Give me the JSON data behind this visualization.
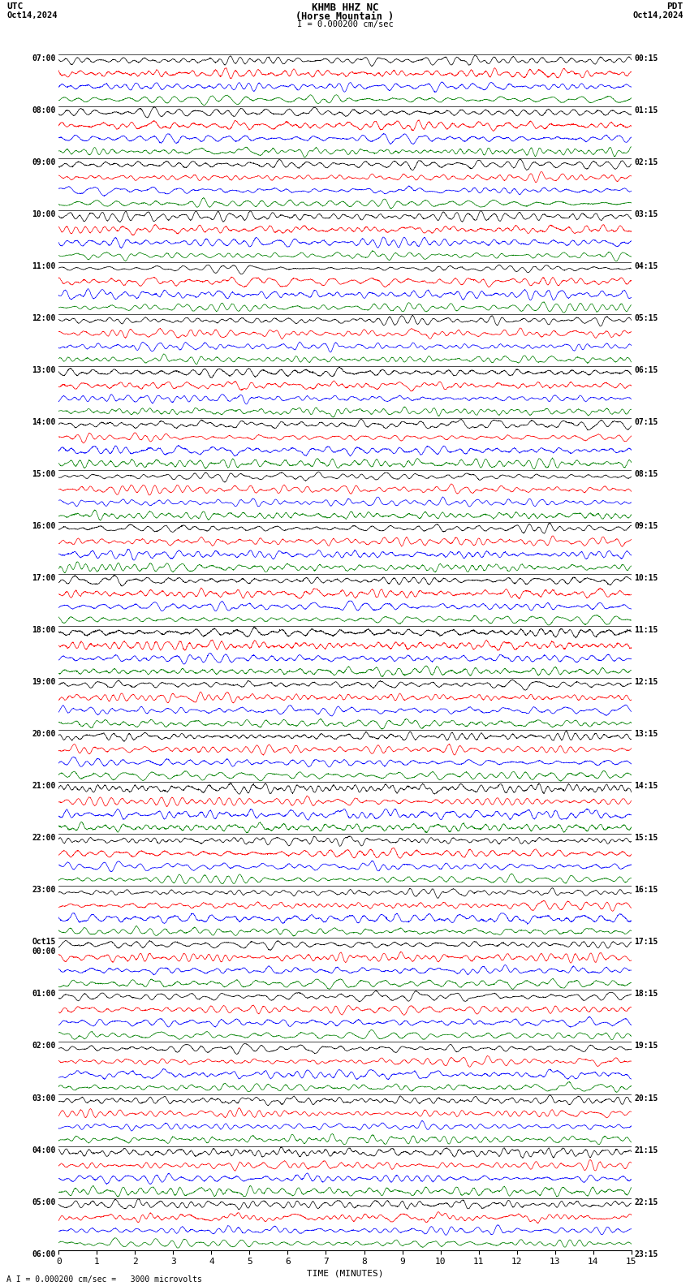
{
  "title_line1": "KHMB HHZ NC",
  "title_line2": "(Horse Mountain )",
  "scale_label": "I = 0.000200 cm/sec",
  "utc_label": "UTC",
  "pdt_label": "PDT",
  "date_left": "Oct14,2024",
  "date_right": "Oct14,2024",
  "bottom_label": "A I = 0.000200 cm/sec =   3000 microvolts",
  "xlabel": "TIME (MINUTES)",
  "left_times": [
    "07:00",
    "08:00",
    "09:00",
    "10:00",
    "11:00",
    "12:00",
    "13:00",
    "14:00",
    "15:00",
    "16:00",
    "17:00",
    "18:00",
    "19:00",
    "20:00",
    "21:00",
    "22:00",
    "23:00",
    "Oct15\n00:00",
    "01:00",
    "02:00",
    "03:00",
    "04:00",
    "05:00",
    "06:00"
  ],
  "right_times": [
    "00:15",
    "01:15",
    "02:15",
    "03:15",
    "04:15",
    "05:15",
    "06:15",
    "07:15",
    "08:15",
    "09:15",
    "10:15",
    "11:15",
    "12:15",
    "13:15",
    "14:15",
    "15:15",
    "16:15",
    "17:15",
    "18:15",
    "19:15",
    "20:15",
    "21:15",
    "22:15",
    "23:15"
  ],
  "n_major_rows": 23,
  "n_channels": 4,
  "colors": [
    "black",
    "red",
    "blue",
    "green"
  ],
  "bg_color": "white",
  "xlim": [
    0,
    15
  ],
  "xticks": [
    0,
    1,
    2,
    3,
    4,
    5,
    6,
    7,
    8,
    9,
    10,
    11,
    12,
    13,
    14,
    15
  ]
}
